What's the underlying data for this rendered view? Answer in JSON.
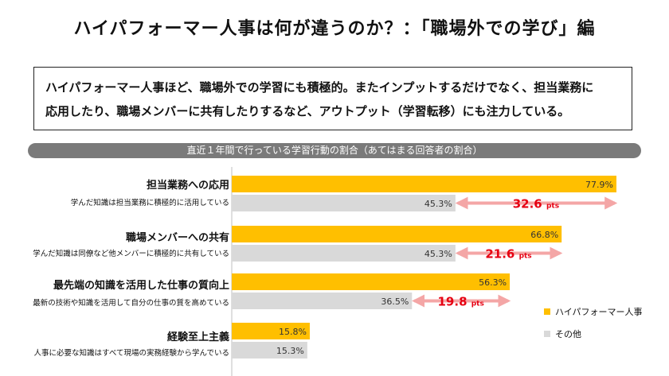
{
  "title": "ハイパフォーマー人事は何が違うのか？：「職場外での学び」編",
  "summary": {
    "line1": "ハイパフォーマー人事ほど、職場外での学習にも積極的。またインプットするだけでなく、担当業務に",
    "line2": "応用したり、職場メンバーに共有したりするなど、アウトプット（学習転移）にも注力している。"
  },
  "banner": "直近１年間で行っている学習行動の割合（あてはまる回答者の割合）",
  "colors": {
    "high": "#FFBF00",
    "other": "#D9D9D9",
    "diff_arrow": "#F4A6A6",
    "diff_text": "#E60012"
  },
  "chart_data": {
    "type": "bar",
    "orientation": "horizontal",
    "categories": [
      {
        "title": "担当業務への応用",
        "desc": "学んだ知識は担当業務に積極的に活用している"
      },
      {
        "title": "職場メンバーへの共有",
        "desc": "学んだ知識は同僚など他メンバーに積極的に共有している"
      },
      {
        "title": "最先端の知識を活用した仕事の質向上",
        "desc": "最新の技術や知識を活用して自分の仕事の質を高めている"
      },
      {
        "title": "経験至上主義",
        "desc": "人事に必要な知識はすべて現場の実務経験から学んでいる"
      }
    ],
    "series": [
      {
        "name": "ハイパフォーマー人事",
        "values": [
          77.9,
          66.8,
          56.3,
          15.8
        ],
        "labels": [
          "77.9%",
          "66.8%",
          "56.3%",
          "15.8%"
        ]
      },
      {
        "name": "その他",
        "values": [
          45.3,
          45.3,
          36.5,
          15.3
        ],
        "labels": [
          "45.3%",
          "45.3%",
          "36.5%",
          "15.3%"
        ]
      }
    ],
    "differences": [
      {
        "value": "32.6",
        "unit": "pts"
      },
      {
        "value": "21.6",
        "unit": "pts"
      },
      {
        "value": "19.8",
        "unit": "pts"
      }
    ],
    "legend_position": "bottom-right"
  }
}
